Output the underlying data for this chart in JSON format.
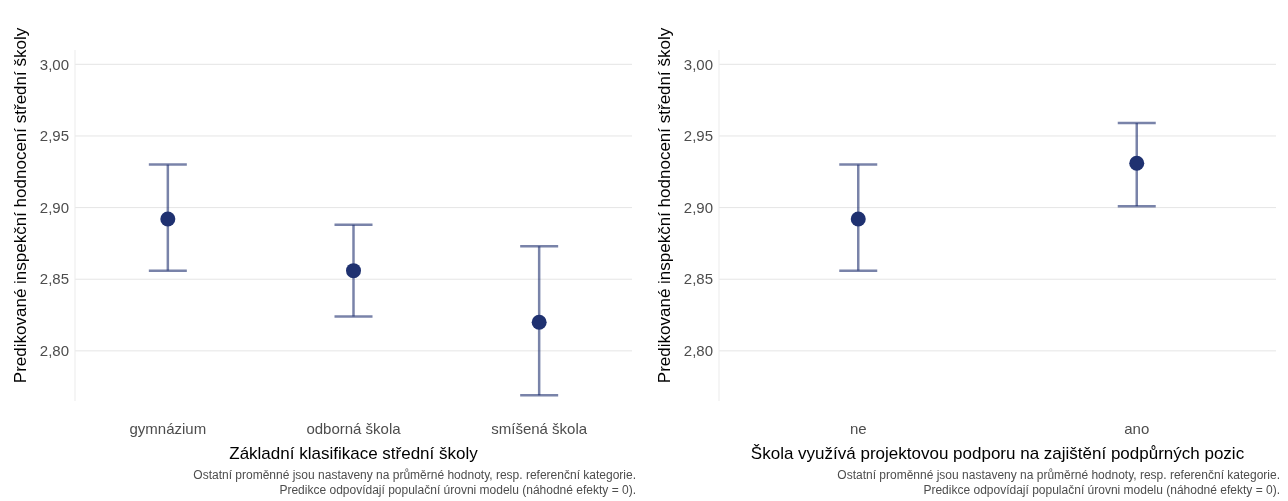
{
  "chart_data": [
    {
      "type": "scatter",
      "categories": [
        "gymnázium",
        "odborná škola",
        "smíšená škola"
      ],
      "values": [
        2.892,
        2.856,
        2.82
      ],
      "errors": [
        [
          2.856,
          2.93
        ],
        [
          2.824,
          2.888
        ],
        [
          2.769,
          2.873
        ]
      ],
      "color": "#1f3170",
      "marker": "circle",
      "grid": "y",
      "ylim": [
        2.765,
        3.01
      ],
      "yticks": [
        {
          "value": 2.8,
          "label": "2,80"
        },
        {
          "value": 2.85,
          "label": "2,85"
        },
        {
          "value": 2.9,
          "label": "2,90"
        },
        {
          "value": 2.95,
          "label": "2,95"
        },
        {
          "value": 3.0,
          "label": "3,00"
        }
      ],
      "xlabel": "Základní klasifikace střední školy",
      "ylabel": "Predikované inspekční hodnocení střední školy",
      "annotations": [
        "Ostatní proměnné jsou nastaveny na průměrné hodnoty, resp. referenční kategorie.",
        "Predikce odpovídají populační úrovni modelu (náhodné efekty = 0)."
      ]
    },
    {
      "type": "scatter",
      "categories": [
        "ne",
        "ano"
      ],
      "values": [
        2.892,
        2.931
      ],
      "errors": [
        [
          2.856,
          2.93
        ],
        [
          2.901,
          2.959
        ]
      ],
      "color": "#1f3170",
      "marker": "circle",
      "grid": "y",
      "ylim": [
        2.765,
        3.01
      ],
      "yticks": [
        {
          "value": 2.8,
          "label": "2,80"
        },
        {
          "value": 2.85,
          "label": "2,85"
        },
        {
          "value": 2.9,
          "label": "2,90"
        },
        {
          "value": 2.95,
          "label": "2,95"
        },
        {
          "value": 3.0,
          "label": "3,00"
        }
      ],
      "xlabel": "Škola využívá projektovou podporu na zajištění podpůrných pozic",
      "ylabel": "Predikované inspekční hodnocení střední školy",
      "annotations": [
        "Ostatní proměnné jsou nastaveny na průměrné hodnoty, resp. referenční kategorie.",
        "Predikce odpovídají populační úrovni modelu (náhodné efekty = 0)."
      ]
    }
  ]
}
